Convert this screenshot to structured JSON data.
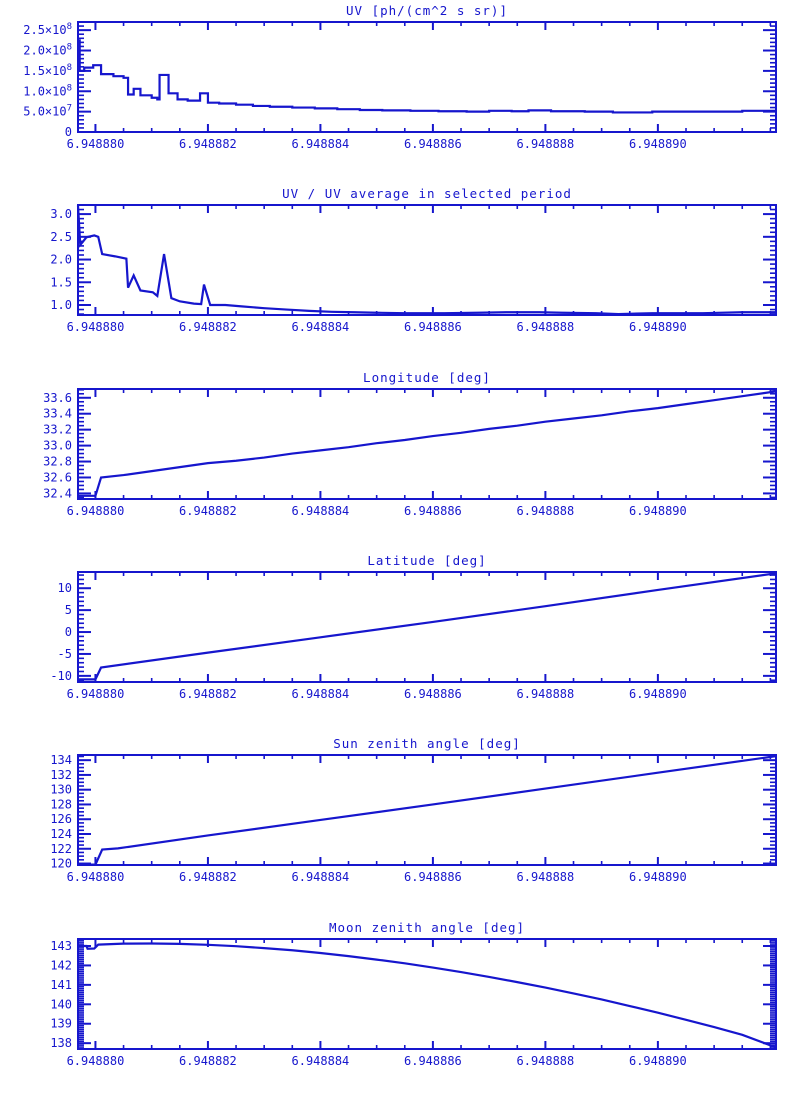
{
  "page": {
    "background": "#ffffff",
    "accent": "#1616cd"
  },
  "axis": {
    "x_base_value": 6.94888,
    "x_t_unit": 1e-06,
    "x_range_t": [
      -0.31,
      12.1
    ],
    "x_tick_t": [
      0,
      2,
      4,
      6,
      8,
      10
    ],
    "x_tick_labels": [
      "6.948880",
      "6.948882",
      "6.948884",
      "6.948886",
      "6.948888",
      "6.948890"
    ],
    "x_minor_step": 0.5
  },
  "chart_data": [
    {
      "type": "line",
      "mode": "steps",
      "title": "UV [ph/(cm^2 s sr)]",
      "ylabel": "",
      "xlabel": "",
      "ylim": [
        0,
        270000000.0
      ],
      "yticks": {
        "values": [
          0,
          50000000.0,
          100000000.0,
          150000000.0,
          200000000.0,
          250000000.0
        ],
        "labels": [
          "0",
          "5.0×10^7",
          "1.0×10^8",
          "1.5×10^8",
          "2.0×10^8",
          "2.5×10^8"
        ],
        "minor_step": 10000000.0
      },
      "points": [
        [
          -0.31,
          225000000.0
        ],
        [
          -0.28,
          150000000.0
        ],
        [
          -0.2,
          158000000.0
        ],
        [
          -0.04,
          164000000.0
        ],
        [
          0.1,
          142000000.0
        ],
        [
          0.32,
          137000000.0
        ],
        [
          0.5,
          133000000.0
        ],
        [
          0.58,
          92000000.0
        ],
        [
          0.68,
          106000000.0
        ],
        [
          0.8,
          90000000.0
        ],
        [
          1.0,
          84000000.0
        ],
        [
          1.1,
          80000000.0
        ],
        [
          1.14,
          140000000.0
        ],
        [
          1.3,
          95000000.0
        ],
        [
          1.46,
          80000000.0
        ],
        [
          1.64,
          77000000.0
        ],
        [
          1.86,
          95000000.0
        ],
        [
          2.0,
          72000000.0
        ],
        [
          2.2,
          70000000.0
        ],
        [
          2.5,
          67000000.0
        ],
        [
          2.8,
          64000000.0
        ],
        [
          3.1,
          62000000.0
        ],
        [
          3.5,
          60000000.0
        ],
        [
          3.9,
          58000000.0
        ],
        [
          4.3,
          56000000.0
        ],
        [
          4.7,
          54000000.0
        ],
        [
          5.1,
          53000000.0
        ],
        [
          5.6,
          52000000.0
        ],
        [
          6.1,
          51000000.0
        ],
        [
          6.6,
          50000000.0
        ],
        [
          7.0,
          52000000.0
        ],
        [
          7.4,
          51000000.0
        ],
        [
          7.7,
          53000000.0
        ],
        [
          8.1,
          51000000.0
        ],
        [
          8.7,
          50000000.0
        ],
        [
          9.2,
          48000000.0
        ],
        [
          9.9,
          50000000.0
        ],
        [
          11.5,
          52000000.0
        ]
      ]
    },
    {
      "type": "line",
      "mode": "line",
      "title": "UV / UV average in selected period",
      "ylim": [
        0.78,
        3.2
      ],
      "yticks": {
        "values": [
          1.0,
          1.5,
          2.0,
          2.5,
          3.0
        ],
        "labels": [
          "1.0",
          "1.5",
          "2.0",
          "2.5",
          "3.0"
        ],
        "minor_step": 0.1
      },
      "points": [
        [
          -0.31,
          3.19
        ],
        [
          -0.27,
          2.32
        ],
        [
          -0.16,
          2.49
        ],
        [
          -0.02,
          2.53
        ],
        [
          0.05,
          2.5
        ],
        [
          0.12,
          2.12
        ],
        [
          0.35,
          2.07
        ],
        [
          0.55,
          2.02
        ],
        [
          0.58,
          1.38
        ],
        [
          0.68,
          1.65
        ],
        [
          0.8,
          1.32
        ],
        [
          1.02,
          1.28
        ],
        [
          1.1,
          1.2
        ],
        [
          1.22,
          2.12
        ],
        [
          1.35,
          1.15
        ],
        [
          1.5,
          1.08
        ],
        [
          1.75,
          1.03
        ],
        [
          1.88,
          1.02
        ],
        [
          1.93,
          1.45
        ],
        [
          2.04,
          1.0
        ],
        [
          2.31,
          1.0
        ],
        [
          2.6,
          0.97
        ],
        [
          3.0,
          0.93
        ],
        [
          3.4,
          0.9
        ],
        [
          3.8,
          0.87
        ],
        [
          4.2,
          0.85
        ],
        [
          4.6,
          0.84
        ],
        [
          5.0,
          0.83
        ],
        [
          5.5,
          0.82
        ],
        [
          6.2,
          0.82
        ],
        [
          6.8,
          0.83
        ],
        [
          7.3,
          0.84
        ],
        [
          7.9,
          0.84
        ],
        [
          8.3,
          0.83
        ],
        [
          8.9,
          0.82
        ],
        [
          9.3,
          0.8
        ],
        [
          9.9,
          0.82
        ],
        [
          10.8,
          0.82
        ],
        [
          11.5,
          0.84
        ],
        [
          12.1,
          0.84
        ]
      ]
    },
    {
      "type": "line",
      "mode": "line",
      "title": "Longitude [deg]",
      "ylim": [
        32.33,
        33.71
      ],
      "yticks": {
        "values": [
          32.4,
          32.6,
          32.8,
          33.0,
          33.2,
          33.4,
          33.6
        ],
        "labels": [
          "32.4",
          "32.6",
          "32.8",
          "33.0",
          "33.2",
          "33.4",
          "33.6"
        ],
        "minor_step": 0.05
      },
      "points": [
        [
          -0.31,
          32.37
        ],
        [
          0.0,
          32.37
        ],
        [
          0.1,
          32.6
        ],
        [
          0.5,
          32.63
        ],
        [
          1.0,
          32.68
        ],
        [
          1.5,
          32.73
        ],
        [
          2.0,
          32.78
        ],
        [
          2.5,
          32.81
        ],
        [
          3.0,
          32.85
        ],
        [
          3.5,
          32.9
        ],
        [
          4.0,
          32.94
        ],
        [
          4.5,
          32.98
        ],
        [
          5.0,
          33.03
        ],
        [
          5.5,
          33.07
        ],
        [
          6.0,
          33.12
        ],
        [
          6.5,
          33.16
        ],
        [
          7.0,
          33.21
        ],
        [
          7.5,
          33.25
        ],
        [
          8.0,
          33.3
        ],
        [
          8.5,
          33.34
        ],
        [
          9.0,
          33.38
        ],
        [
          9.5,
          33.43
        ],
        [
          10.0,
          33.47
        ],
        [
          10.5,
          33.52
        ],
        [
          11.0,
          33.57
        ],
        [
          11.5,
          33.62
        ],
        [
          12.1,
          33.68
        ]
      ]
    },
    {
      "type": "line",
      "mode": "line",
      "title": "Latitude [deg]",
      "ylim": [
        -11.4,
        13.7
      ],
      "yticks": {
        "values": [
          -10,
          -5,
          0,
          5,
          10
        ],
        "labels": [
          "-10",
          "-5",
          "0",
          "5",
          "10"
        ],
        "minor_step": 1
      },
      "points": [
        [
          -0.31,
          -10.8
        ],
        [
          0.0,
          -10.8
        ],
        [
          0.1,
          -8.1
        ],
        [
          2.0,
          -4.7
        ],
        [
          4.0,
          -1.2
        ],
        [
          6.0,
          2.3
        ],
        [
          8.0,
          5.9
        ],
        [
          10.0,
          9.6
        ],
        [
          12.1,
          13.4
        ]
      ]
    },
    {
      "type": "line",
      "mode": "line",
      "title": "Sun zenith angle [deg]",
      "ylim": [
        119.8,
        134.7
      ],
      "yticks": {
        "values": [
          120,
          122,
          124,
          126,
          128,
          130,
          132,
          134
        ],
        "labels": [
          "120",
          "122",
          "124",
          "126",
          "128",
          "130",
          "132",
          "134"
        ],
        "minor_step": 0.5
      },
      "points": [
        [
          -0.31,
          119.85
        ],
        [
          0.0,
          119.85
        ],
        [
          0.12,
          121.9
        ],
        [
          0.4,
          122.05
        ],
        [
          2.0,
          123.8
        ],
        [
          4.0,
          125.9
        ],
        [
          6.0,
          128.0
        ],
        [
          8.0,
          130.15
        ],
        [
          10.0,
          132.3
        ],
        [
          12.1,
          134.55
        ]
      ]
    },
    {
      "type": "line",
      "mode": "line",
      "title": "Moon zenith angle [deg]",
      "ylim": [
        137.7,
        143.36
      ],
      "yticks": {
        "values": [
          138,
          139,
          140,
          141,
          142,
          143
        ],
        "labels": [
          "138",
          "139",
          "140",
          "141",
          "142",
          "143"
        ],
        "minor_step": 0.1
      },
      "points": [
        [
          -0.31,
          143.0
        ],
        [
          -0.16,
          143.0
        ],
        [
          -0.14,
          142.86
        ],
        [
          -0.02,
          142.87
        ],
        [
          0.05,
          143.07
        ],
        [
          0.5,
          143.12
        ],
        [
          1.0,
          143.13
        ],
        [
          1.5,
          143.11
        ],
        [
          2.0,
          143.06
        ],
        [
          2.5,
          142.99
        ],
        [
          3.0,
          142.89
        ],
        [
          3.5,
          142.78
        ],
        [
          4.0,
          142.64
        ],
        [
          4.5,
          142.48
        ],
        [
          5.0,
          142.3
        ],
        [
          5.5,
          142.11
        ],
        [
          6.0,
          141.89
        ],
        [
          6.5,
          141.66
        ],
        [
          7.0,
          141.41
        ],
        [
          7.5,
          141.14
        ],
        [
          8.0,
          140.86
        ],
        [
          8.5,
          140.56
        ],
        [
          9.0,
          140.25
        ],
        [
          9.5,
          139.91
        ],
        [
          10.0,
          139.57
        ],
        [
          10.5,
          139.2
        ],
        [
          11.0,
          138.83
        ],
        [
          11.5,
          138.43
        ],
        [
          12.1,
          137.78
        ]
      ]
    }
  ]
}
